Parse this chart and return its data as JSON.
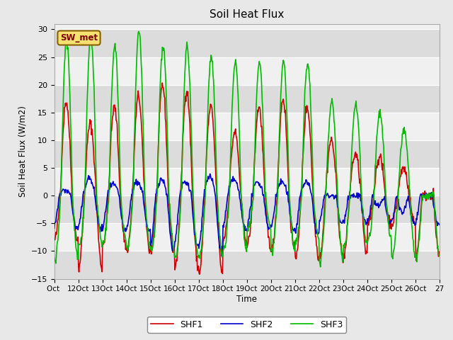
{
  "title": "Soil Heat Flux",
  "ylabel": "Soil Heat Flux (W/m2)",
  "xlabel": "Time",
  "ylim": [
    -15,
    31
  ],
  "yticks": [
    -15,
    -10,
    -5,
    0,
    5,
    10,
    15,
    20,
    25,
    30
  ],
  "xtick_labels": [
    "Oct ",
    "12Oct",
    "13Oct",
    "14Oct",
    "15Oct",
    "16Oct",
    "17Oct",
    "18Oct",
    "19Oct",
    "20Oct",
    "21Oct",
    "22Oct",
    "23Oct",
    "24Oct",
    "25Oct",
    "26Oct",
    "27"
  ],
  "legend_label": "SW_met",
  "line_colors": {
    "SHF1": "#cc0000",
    "SHF2": "#0000cc",
    "SHF3": "#00bb00"
  },
  "bg_color": "#e8e8e8",
  "plot_bg_color": "#f0f0f0",
  "stripe_color": "#dcdcdc",
  "n_days": 16,
  "n_per_day": 48,
  "shf1_peaks": [
    17,
    13,
    16,
    18,
    20,
    19,
    16,
    11.5,
    16,
    17.5,
    16,
    10,
    7.5,
    7,
    5,
    0
  ],
  "shf1_troughs": [
    -8,
    -13,
    -9,
    -10,
    -10,
    -13,
    -14,
    -8,
    -9,
    -10,
    -11,
    -11,
    -11,
    -5,
    -5,
    -11
  ],
  "shf2_peaks": [
    1,
    3.2,
    2,
    2.5,
    3,
    2.5,
    3.5,
    3,
    2.5,
    2.5,
    2.5,
    0,
    0,
    -2,
    -3,
    0
  ],
  "shf2_troughs": [
    -6,
    -6,
    -6.5,
    -6.5,
    -10,
    -9,
    -10,
    -6,
    -6,
    -6,
    -7,
    -5,
    -5,
    -5,
    -5,
    -5
  ],
  "shf3_peaks": [
    28,
    29,
    27,
    29.5,
    27,
    27,
    25,
    24,
    24,
    24,
    24,
    17,
    16.5,
    15,
    12,
    0
  ],
  "shf3_troughs": [
    -11.5,
    -9,
    -8.5,
    -9.5,
    -10,
    -11,
    -11,
    -10,
    -6,
    -10,
    -8,
    -12,
    -9,
    -8,
    -11,
    -11
  ]
}
